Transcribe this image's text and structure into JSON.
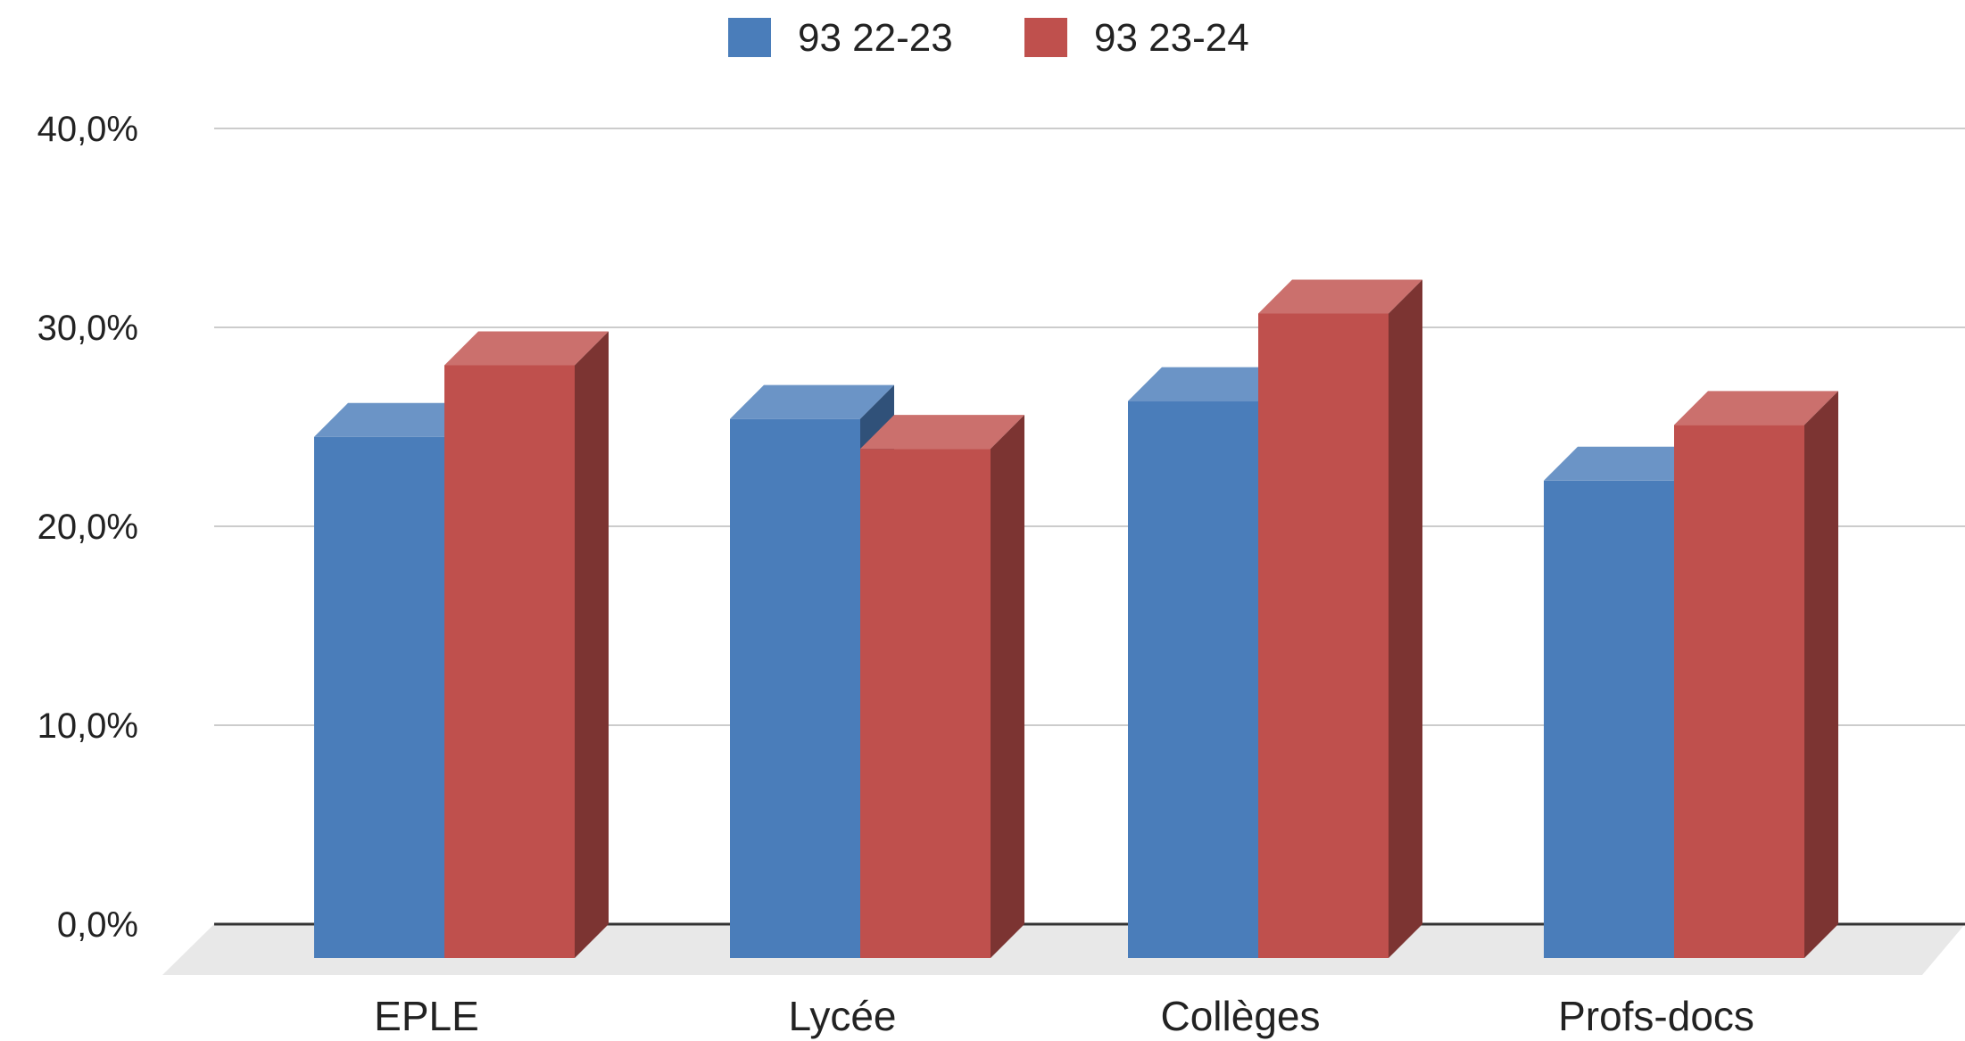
{
  "chart_data": {
    "type": "bar",
    "categories": [
      "EPLE",
      "Lycée",
      "Collèges",
      "Profs-docs"
    ],
    "series": [
      {
        "name": "93 22-23",
        "values": [
          26.2,
          27.1,
          28.0,
          24.0
        ],
        "color": "#4a7dba"
      },
      {
        "name": "93 23-24",
        "values": [
          29.8,
          25.6,
          32.4,
          26.8
        ],
        "color": "#bf504d"
      }
    ],
    "ylim": [
      0,
      40
    ],
    "yticks": [
      "0,0%",
      "10,0%",
      "20,0%",
      "30,0%",
      "40,0%"
    ],
    "grid": true,
    "legend_position": "top-center",
    "style": "3d-column",
    "title": "",
    "xlabel": "",
    "ylabel": ""
  }
}
